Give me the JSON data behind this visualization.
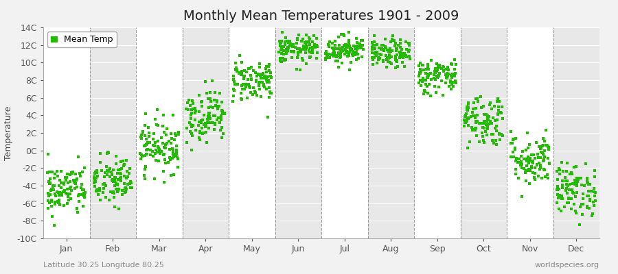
{
  "title": "Monthly Mean Temperatures 1901 - 2009",
  "ylabel": "Temperature",
  "xlabel_labels": [
    "Jan",
    "Feb",
    "Mar",
    "Apr",
    "May",
    "Jun",
    "Jul",
    "Aug",
    "Sep",
    "Oct",
    "Nov",
    "Dec"
  ],
  "subtitle": "Latitude 30.25 Longitude 80.25",
  "watermark": "worldspecies.org",
  "legend_label": "Mean Temp",
  "dot_color": "#22bb00",
  "bg_color": "#f2f2f2",
  "plot_bg_color": "#ffffff",
  "stripe_color": "#e8e8e8",
  "ylim": [
    -10,
    14
  ],
  "ytick_labels": [
    "-10C",
    "-8C",
    "-6C",
    "-4C",
    "-2C",
    "0C",
    "2C",
    "4C",
    "6C",
    "8C",
    "10C",
    "12C",
    "14C"
  ],
  "ytick_values": [
    -10,
    -8,
    -6,
    -4,
    -2,
    0,
    2,
    4,
    6,
    8,
    10,
    12,
    14
  ],
  "monthly_means": [
    -4.5,
    -3.5,
    0.5,
    4.0,
    8.0,
    11.5,
    11.5,
    11.0,
    8.5,
    3.5,
    -1.0,
    -4.5
  ],
  "monthly_stds": [
    1.5,
    1.5,
    1.5,
    1.5,
    1.2,
    0.8,
    0.8,
    0.8,
    1.0,
    1.5,
    1.5,
    1.5
  ],
  "n_years": 109,
  "seed": 42,
  "title_fontsize": 14,
  "label_fontsize": 9,
  "tick_fontsize": 9,
  "marker_size": 3.5
}
